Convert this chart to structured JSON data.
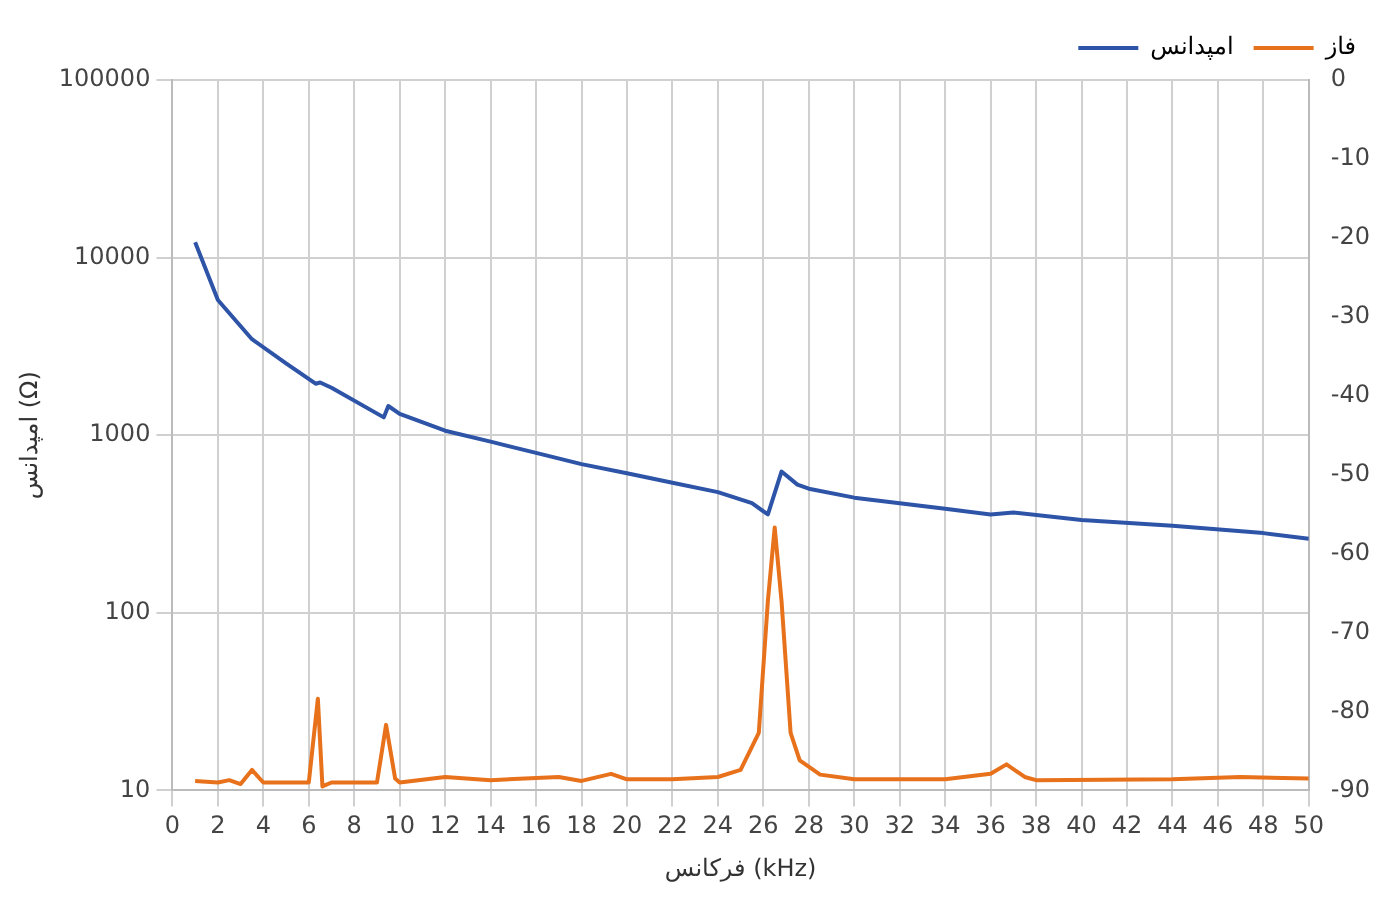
{
  "chart_data": {
    "type": "line",
    "xlabel": "فرکانس (kHz)",
    "ylabel": "امپدانس (Ω)",
    "xlim": [
      0,
      50
    ],
    "xticks": [
      0,
      2,
      4,
      6,
      8,
      10,
      12,
      14,
      16,
      18,
      20,
      22,
      24,
      26,
      28,
      30,
      32,
      34,
      36,
      38,
      40,
      42,
      44,
      46,
      48,
      50
    ],
    "ylim": [
      10,
      100000
    ],
    "yticks": [
      10,
      100,
      1000,
      10000,
      100000
    ],
    "log": "y",
    "y2lim": [
      -90,
      0
    ],
    "y2ticks": [
      -90,
      -80,
      -70,
      -60,
      -50,
      -40,
      -30,
      -20,
      -10,
      0
    ],
    "grid": true,
    "legend": "top right",
    "series": [
      {
        "name": "امپدانس",
        "color": "#2e54a8",
        "x": [
          1,
          2,
          3.5,
          5,
          6.3,
          6.5,
          7,
          9.3,
          9.5,
          10,
          12,
          14,
          16,
          18,
          20,
          22,
          24,
          25.5,
          26.2,
          26.8,
          27.5,
          28,
          30,
          32,
          34,
          36,
          37,
          40,
          44,
          48,
          50
        ],
        "values": [
          12200,
          5770,
          3470,
          2540,
          1950,
          1980,
          1850,
          1260,
          1460,
          1320,
          1060,
          920,
          795,
          687,
          610,
          540,
          478,
          414,
          358,
          624,
          527,
          500,
          445,
          414,
          385,
          358,
          367,
          333,
          309,
          281,
          261
        ]
      },
      {
        "name": "فاز",
        "color": "#e8711c",
        "axis": "y2",
        "x": [
          1,
          2,
          2.5,
          3,
          3.5,
          4,
          6,
          6.4,
          6.6,
          7,
          9,
          9.4,
          9.8,
          10,
          12,
          14,
          17,
          18,
          19.3,
          20,
          22,
          24,
          25,
          25.8,
          26.2,
          26.5,
          26.8,
          27.2,
          27.6,
          28.5,
          30,
          34,
          36,
          36.7,
          37.5,
          38,
          44,
          47,
          50
        ],
        "values": [
          -88.8,
          -89,
          -88.7,
          -89.2,
          -87.4,
          -89,
          -89,
          -78.4,
          -89.5,
          -89,
          -89,
          -81.7,
          -88.5,
          -89,
          -88.3,
          -88.7,
          -88.3,
          -88.8,
          -87.9,
          -88.6,
          -88.6,
          -88.3,
          -87.4,
          -82.7,
          -66,
          -56.7,
          -66,
          -82.7,
          -86.2,
          -88,
          -88.6,
          -88.6,
          -87.9,
          -86.7,
          -88.3,
          -88.7,
          -88.6,
          -88.3,
          -88.5
        ]
      }
    ]
  }
}
